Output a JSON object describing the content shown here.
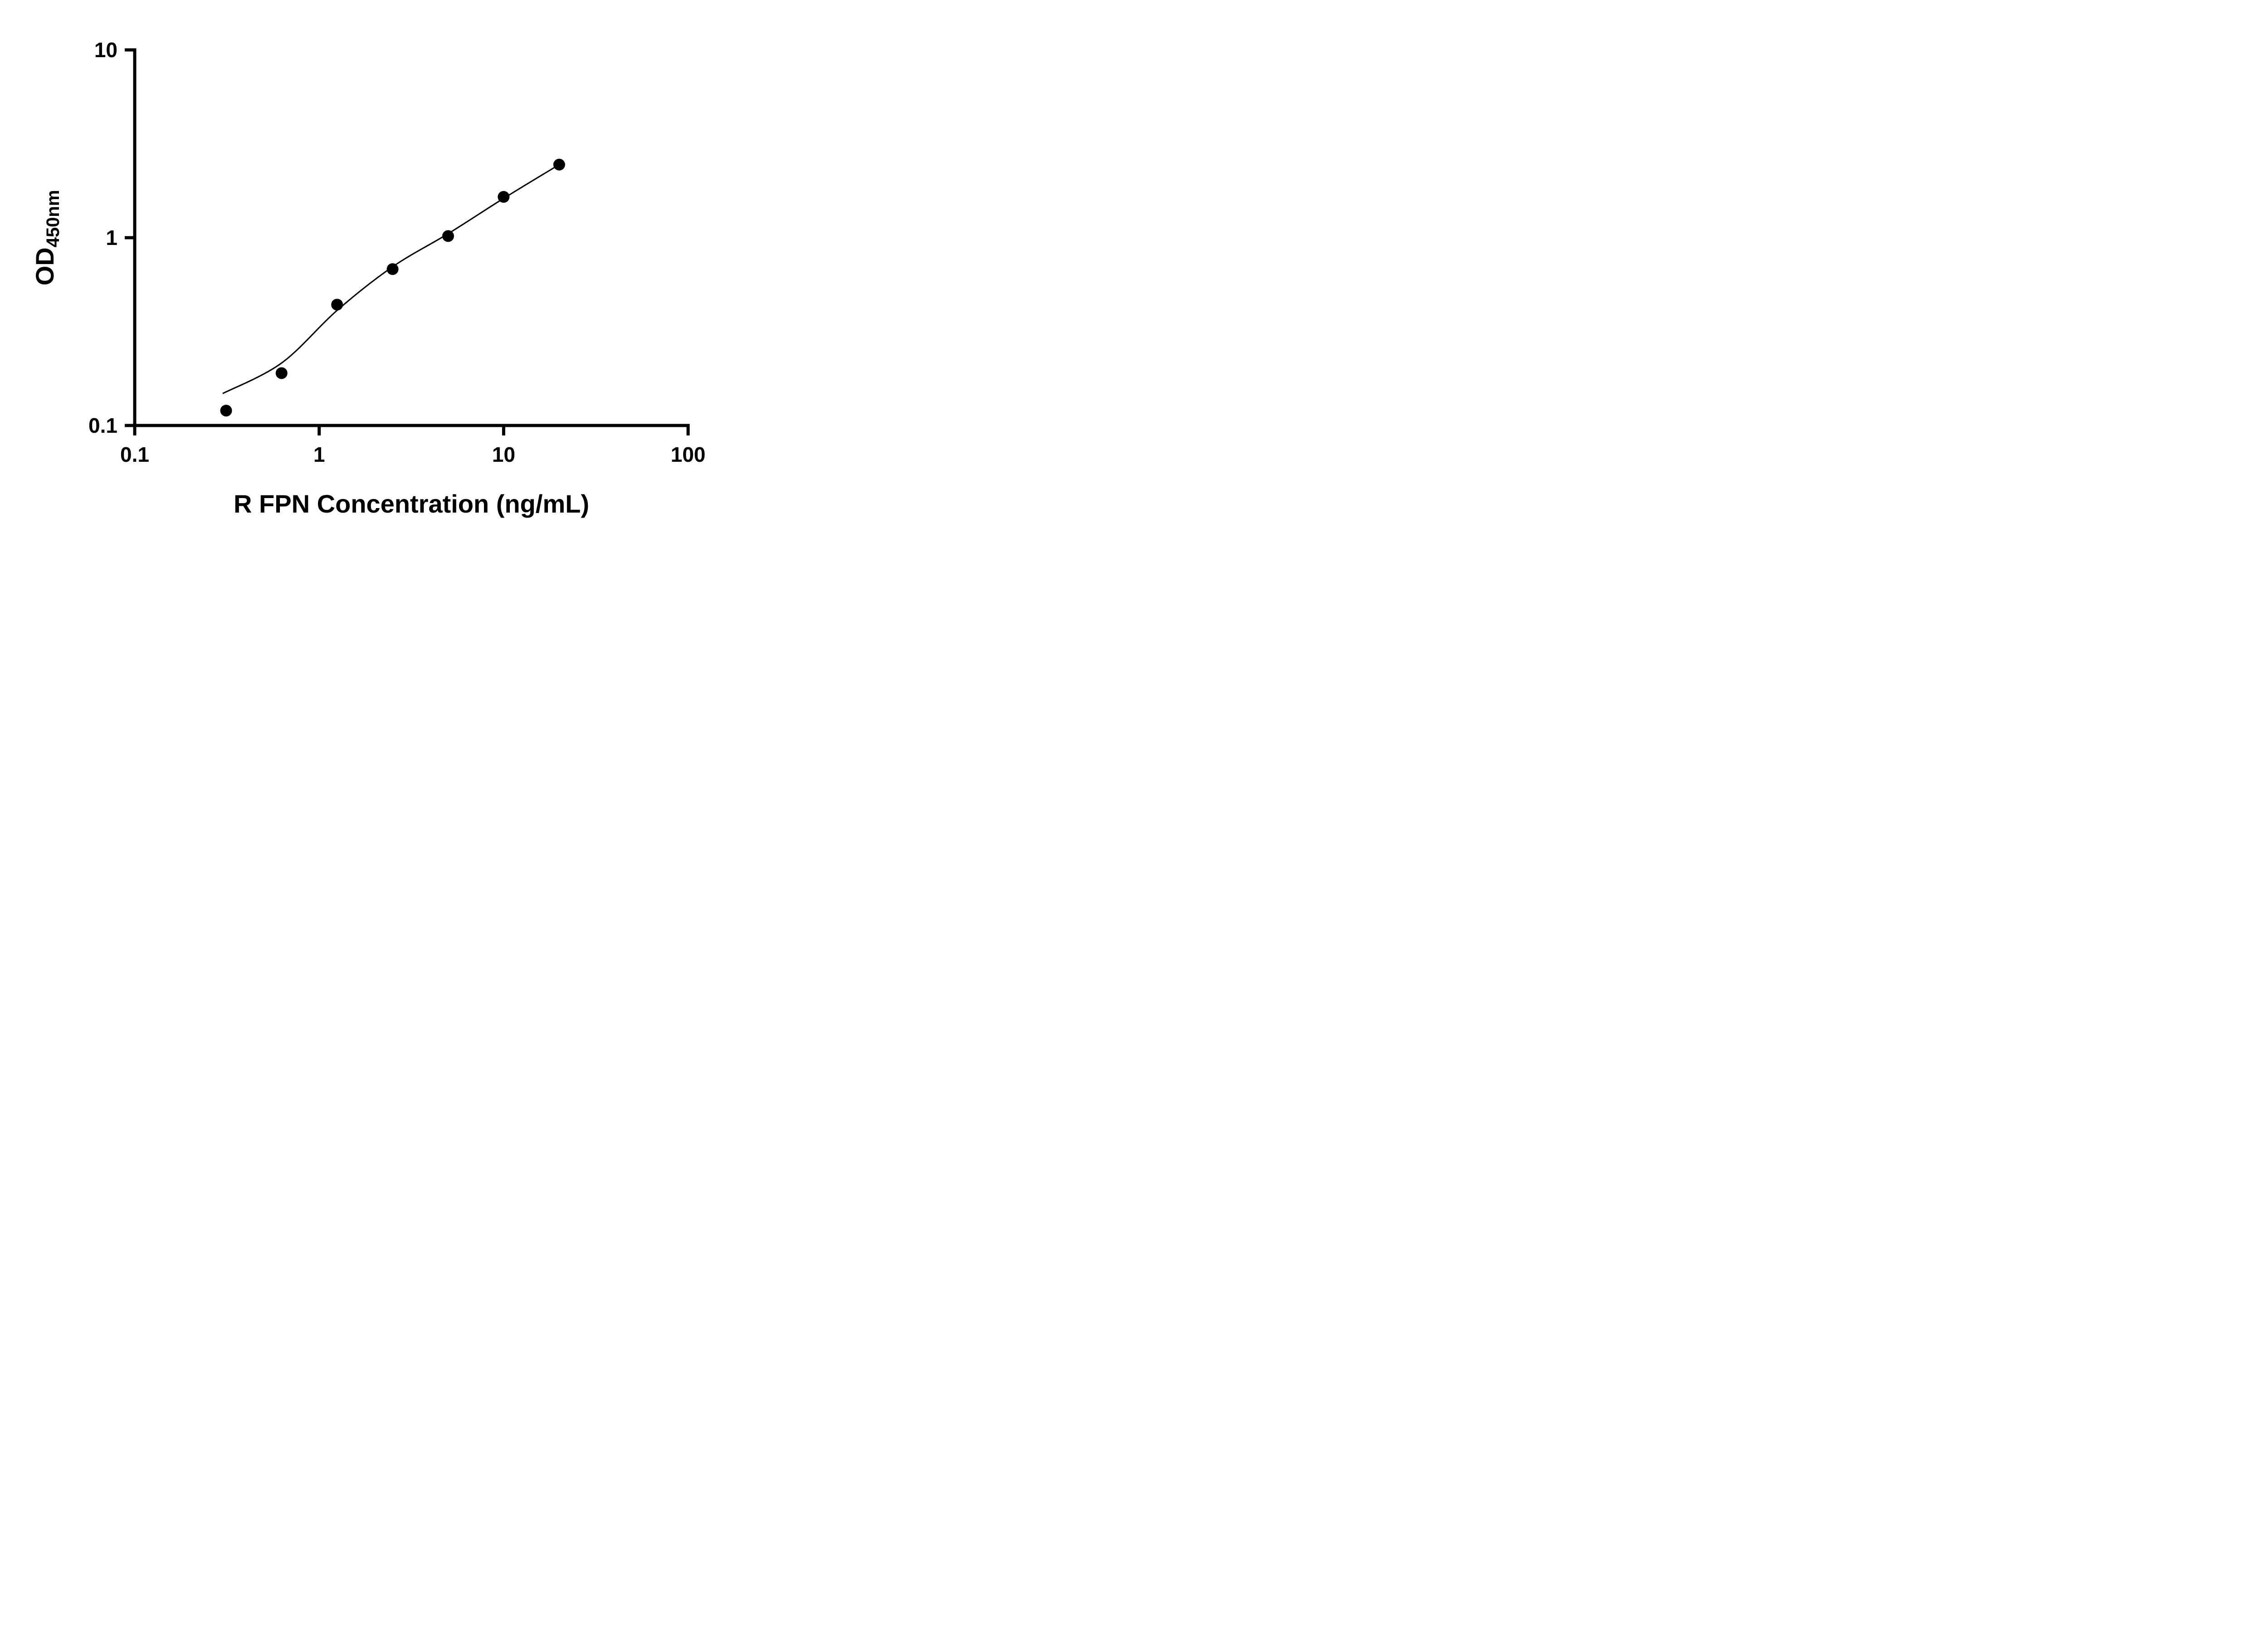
{
  "chart_data": {
    "type": "scatter",
    "title": "",
    "xlabel": "R FPN Concentration (ng/mL)",
    "ylabel": "OD",
    "ylabel_sub": "450nm",
    "xscale": "log",
    "yscale": "log",
    "xlim": [
      0.1,
      100
    ],
    "ylim": [
      0.1,
      10
    ],
    "x_ticks": {
      "values": [
        0.1,
        1,
        10,
        100
      ],
      "labels": [
        "0.1",
        "1",
        "10",
        "100"
      ]
    },
    "y_ticks": {
      "values": [
        0.1,
        1,
        10
      ],
      "labels": [
        "0.1",
        "1",
        "10"
      ]
    },
    "grid": "off",
    "legend": "none",
    "point_color": "#000000",
    "line_color": "#000000",
    "points": {
      "x": [
        0.313,
        0.625,
        1.25,
        2.5,
        5,
        10,
        20
      ],
      "y": [
        0.12,
        0.19,
        0.44,
        0.68,
        1.02,
        1.65,
        2.45
      ]
    },
    "fit_line": {
      "x": [
        0.3,
        0.625,
        1.25,
        2.5,
        5,
        10,
        20
      ],
      "y": [
        0.148,
        0.215,
        0.41,
        0.7,
        1.05,
        1.62,
        2.45
      ]
    }
  }
}
